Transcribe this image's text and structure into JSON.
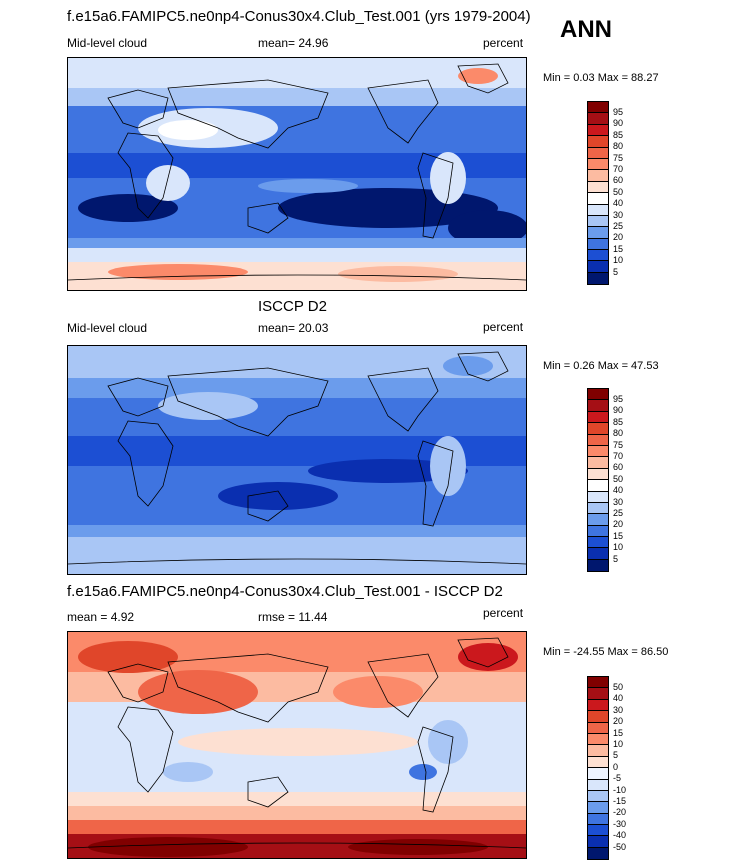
{
  "season": "ANN",
  "panels": [
    {
      "title": "f.e15a6.FAMIPC5.ne0np4-Conus30x4.Club_Test.001 (yrs 1979-2004)",
      "left_label": "Mid-level cloud",
      "center_label": "mean=  24.96",
      "right_label": "percent",
      "stats": "Min =   0.03 Max =  88.27",
      "levels": [
        "95",
        "90",
        "85",
        "80",
        "75",
        "70",
        "60",
        "50",
        "40",
        "30",
        "25",
        "20",
        "15",
        "10",
        "5"
      ]
    },
    {
      "title": "ISCCP D2",
      "left_label": "Mid-level cloud",
      "center_label": "mean=  20.03",
      "right_label": "percent",
      "stats": "Min =   0.26 Max =  47.53",
      "levels": [
        "95",
        "90",
        "85",
        "80",
        "75",
        "70",
        "60",
        "50",
        "40",
        "30",
        "25",
        "20",
        "15",
        "10",
        "5"
      ]
    },
    {
      "title": "f.e15a6.FAMIPC5.ne0np4-Conus30x4.Club_Test.001 - ISCCP D2",
      "left_label": "mean =   4.92",
      "center_label": "rmse =  11.44",
      "right_label": "percent",
      "stats": "Min = -24.55 Max =  86.50",
      "levels": [
        "50",
        "40",
        "30",
        "20",
        "15",
        "10",
        "5",
        "0",
        "-5",
        "-10",
        "-15",
        "-20",
        "-30",
        "-40",
        "-50"
      ]
    }
  ],
  "colors": {
    "abs_scale": [
      "#800000",
      "#a50f15",
      "#cb181d",
      "#e0462a",
      "#ef6548",
      "#fb8a6a",
      "#fcbba1",
      "#fde0d2",
      "#ffffff",
      "#d9e6fb",
      "#a9c6f5",
      "#6b9cec",
      "#3f74e0",
      "#1c4fd3",
      "#0a2fb0",
      "#00176e"
    ],
    "diff_scale": [
      "#800000",
      "#a50f15",
      "#cb181d",
      "#e0462a",
      "#ef6548",
      "#fb8a6a",
      "#fcbba1",
      "#fde0d2",
      "#eef4ff",
      "#d9e6fb",
      "#a9c6f5",
      "#6b9cec",
      "#3f74e0",
      "#1c4fd3",
      "#0a2fb0",
      "#00176e"
    ]
  }
}
